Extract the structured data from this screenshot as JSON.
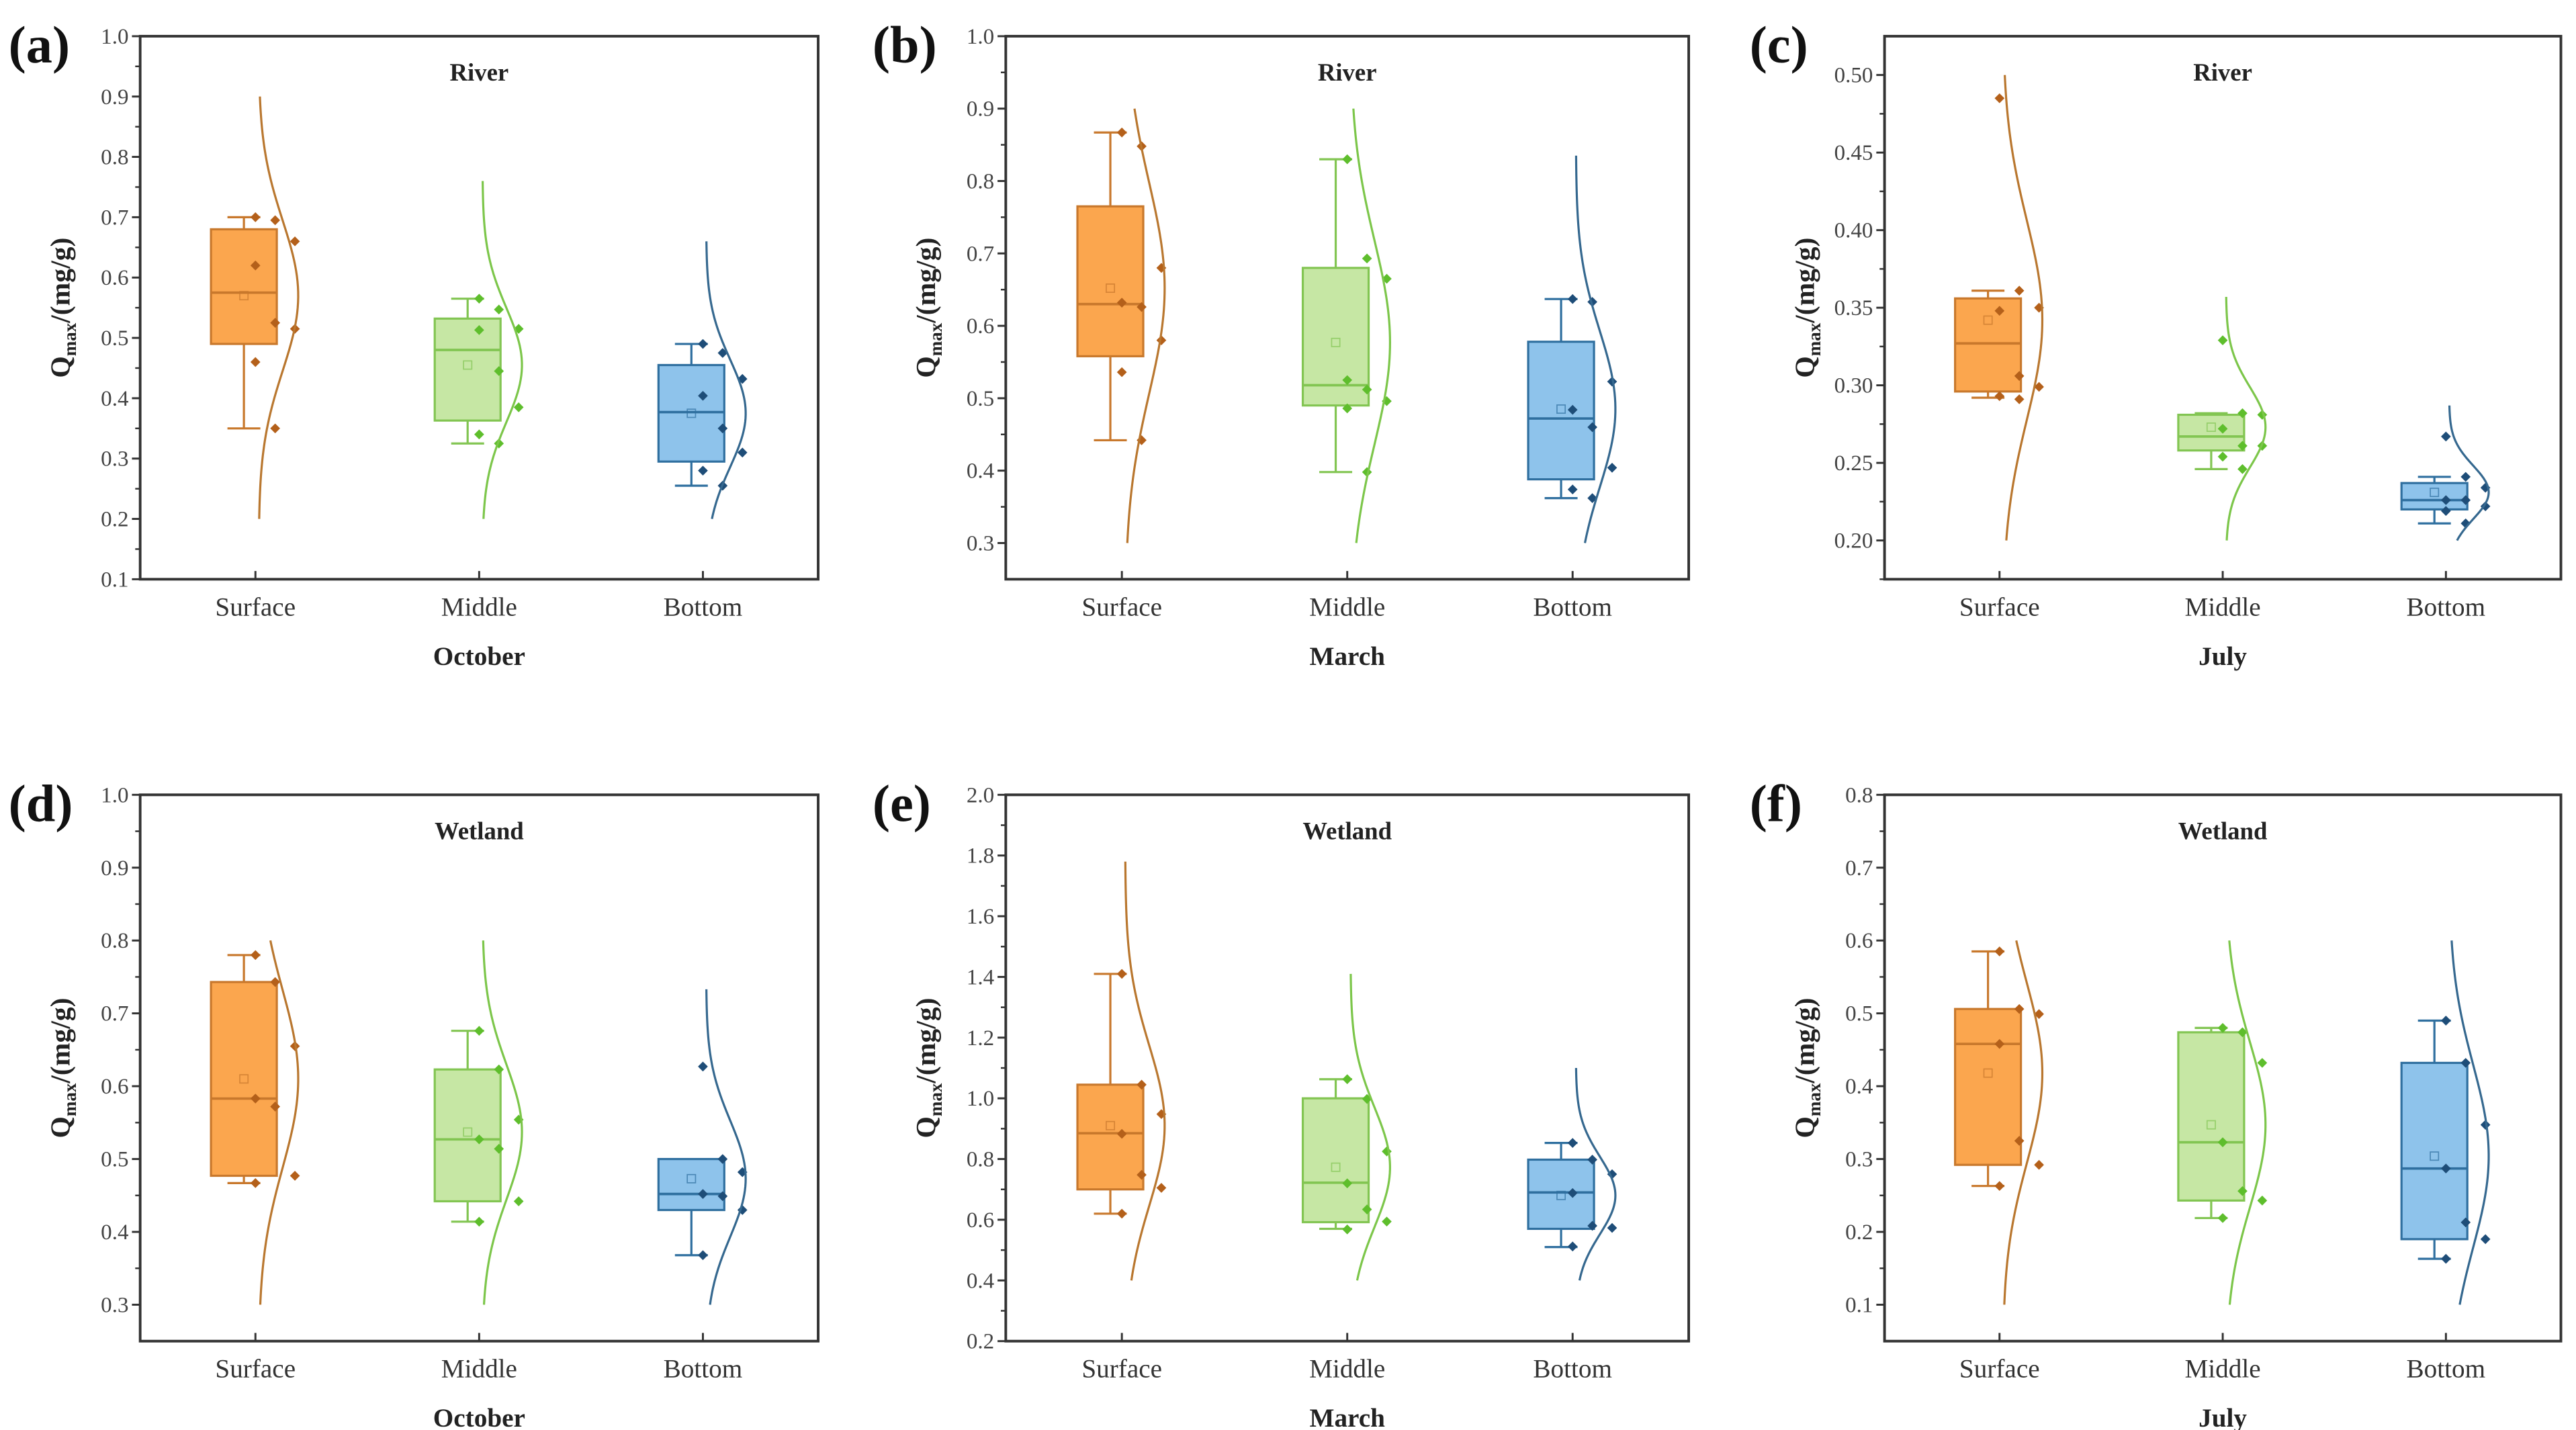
{
  "colors": {
    "Surface": {
      "fill": "#FBA64E",
      "stroke": "#C8782C",
      "point": "#B4601A",
      "curve": "#B9772F"
    },
    "Middle": {
      "fill": "#C6E7A4",
      "stroke": "#82C552",
      "point": "#5EBE2C",
      "curve": "#7CC64A"
    },
    "Bottom": {
      "fill": "#8EC3EB",
      "stroke": "#2F6F9F",
      "point": "#1E4D78",
      "curve": "#35688F"
    }
  },
  "chart_data": [
    {
      "type": "box",
      "panel": "(a)",
      "title": "River",
      "xlabel": "October",
      "ylabel": {
        "main": "Q",
        "sub": "max",
        "rest": "/(mg/g)"
      },
      "ylim": [
        0.1,
        1.0
      ],
      "yticks": [
        0.1,
        0.2,
        0.3,
        0.4,
        0.5,
        0.6,
        0.7,
        0.8,
        0.9,
        1.0
      ],
      "decimals": 1,
      "categories": [
        "Surface",
        "Middle",
        "Bottom"
      ],
      "groups": [
        {
          "min": 0.35,
          "q1": 0.49,
          "median": 0.575,
          "q3": 0.68,
          "max": 0.7,
          "mean": 0.57,
          "curve": [
            0.2,
            0.9
          ],
          "points": [
            0.7,
            0.695,
            0.66,
            0.62,
            0.525,
            0.515,
            0.46,
            0.35
          ]
        },
        {
          "min": 0.325,
          "q1": 0.363,
          "median": 0.48,
          "q3": 0.532,
          "max": 0.565,
          "mean": 0.455,
          "curve": [
            0.2,
            0.76
          ],
          "points": [
            0.565,
            0.547,
            0.515,
            0.513,
            0.445,
            0.385,
            0.34,
            0.325
          ]
        },
        {
          "min": 0.255,
          "q1": 0.295,
          "median": 0.377,
          "q3": 0.455,
          "max": 0.49,
          "mean": 0.375,
          "curve": [
            0.2,
            0.66
          ],
          "points": [
            0.49,
            0.475,
            0.432,
            0.404,
            0.35,
            0.31,
            0.28,
            0.255
          ]
        }
      ]
    },
    {
      "type": "box",
      "panel": "(b)",
      "title": "River",
      "xlabel": "March",
      "ylabel": {
        "main": "Q",
        "sub": "max",
        "rest": "/(mg/g)"
      },
      "ylim": [
        0.25,
        1.0
      ],
      "yticks": [
        0.3,
        0.4,
        0.5,
        0.6,
        0.7,
        0.8,
        0.9,
        1.0
      ],
      "decimals": 1,
      "categories": [
        "Surface",
        "Middle",
        "Bottom"
      ],
      "groups": [
        {
          "min": 0.442,
          "q1": 0.558,
          "median": 0.63,
          "q3": 0.765,
          "max": 0.867,
          "mean": 0.652,
          "curve": [
            0.3,
            0.9
          ],
          "points": [
            0.867,
            0.848,
            0.68,
            0.632,
            0.626,
            0.58,
            0.536,
            0.442
          ]
        },
        {
          "min": 0.398,
          "q1": 0.49,
          "median": 0.518,
          "q3": 0.68,
          "max": 0.83,
          "mean": 0.577,
          "curve": [
            0.3,
            0.9
          ],
          "points": [
            0.83,
            0.693,
            0.665,
            0.525,
            0.512,
            0.496,
            0.486,
            0.398
          ]
        },
        {
          "min": 0.362,
          "q1": 0.388,
          "median": 0.472,
          "q3": 0.578,
          "max": 0.637,
          "mean": 0.485,
          "curve": [
            0.3,
            0.835
          ],
          "points": [
            0.637,
            0.633,
            0.523,
            0.484,
            0.46,
            0.404,
            0.374,
            0.362
          ]
        }
      ]
    },
    {
      "type": "box",
      "panel": "(c)",
      "title": "River",
      "xlabel": "July",
      "ylabel": {
        "main": "Q",
        "sub": "max",
        "rest": "/(mg/g)"
      },
      "ylim": [
        0.175,
        0.525
      ],
      "yticks": [
        0.2,
        0.25,
        0.3,
        0.35,
        0.4,
        0.45,
        0.5
      ],
      "decimals": 2,
      "categories": [
        "Surface",
        "Middle",
        "Bottom"
      ],
      "groups": [
        {
          "min": 0.292,
          "q1": 0.296,
          "median": 0.327,
          "q3": 0.356,
          "max": 0.361,
          "mean": 0.342,
          "curve": [
            0.2,
            0.5
          ],
          "points": [
            0.485,
            0.361,
            0.35,
            0.348,
            0.306,
            0.299,
            0.293,
            0.291
          ]
        },
        {
          "min": 0.246,
          "q1": 0.258,
          "median": 0.267,
          "q3": 0.281,
          "max": 0.282,
          "mean": 0.273,
          "curve": [
            0.2,
            0.357
          ],
          "points": [
            0.329,
            0.282,
            0.281,
            0.272,
            0.261,
            0.261,
            0.254,
            0.246
          ]
        },
        {
          "min": 0.211,
          "q1": 0.22,
          "median": 0.226,
          "q3": 0.237,
          "max": 0.241,
          "mean": 0.231,
          "curve": [
            0.2,
            0.287
          ],
          "points": [
            0.267,
            0.241,
            0.234,
            0.226,
            0.226,
            0.222,
            0.219,
            0.211
          ]
        }
      ]
    },
    {
      "type": "box",
      "panel": "(d)",
      "title": "Wetland",
      "xlabel": "October",
      "ylabel": {
        "main": "Q",
        "sub": "max",
        "rest": "/(mg/g)"
      },
      "ylim": [
        0.25,
        1.0
      ],
      "yticks": [
        0.3,
        0.4,
        0.5,
        0.6,
        0.7,
        0.8,
        0.9,
        1.0
      ],
      "decimals": 1,
      "categories": [
        "Surface",
        "Middle",
        "Bottom"
      ],
      "groups": [
        {
          "min": 0.467,
          "q1": 0.477,
          "median": 0.583,
          "q3": 0.743,
          "max": 0.78,
          "mean": 0.61,
          "curve": [
            0.3,
            0.8
          ],
          "points": [
            0.78,
            0.743,
            0.655,
            0.583,
            0.572,
            0.477,
            0.467
          ]
        },
        {
          "min": 0.414,
          "q1": 0.442,
          "median": 0.527,
          "q3": 0.623,
          "max": 0.676,
          "mean": 0.537,
          "curve": [
            0.3,
            0.8
          ],
          "points": [
            0.676,
            0.623,
            0.554,
            0.527,
            0.514,
            0.442,
            0.414
          ]
        },
        {
          "min": 0.368,
          "q1": 0.43,
          "median": 0.452,
          "q3": 0.5,
          "max": 0.5,
          "mean": 0.473,
          "curve": [
            0.3,
            0.733
          ],
          "points": [
            0.627,
            0.5,
            0.482,
            0.452,
            0.449,
            0.43,
            0.368
          ]
        }
      ]
    },
    {
      "type": "box",
      "panel": "(e)",
      "title": "Wetland",
      "xlabel": "March",
      "ylabel": {
        "main": "Q",
        "sub": "max",
        "rest": "/(mg/g)"
      },
      "ylim": [
        0.2,
        2.0
      ],
      "yticks": [
        0.2,
        0.4,
        0.6,
        0.8,
        1.0,
        1.2,
        1.4,
        1.6,
        1.8,
        2.0
      ],
      "decimals": 1,
      "categories": [
        "Surface",
        "Middle",
        "Bottom"
      ],
      "groups": [
        {
          "min": 0.62,
          "q1": 0.7,
          "median": 0.885,
          "q3": 1.045,
          "max": 1.41,
          "mean": 0.91,
          "curve": [
            0.4,
            1.78
          ],
          "points": [
            1.41,
            1.045,
            0.948,
            0.883,
            0.748,
            0.705,
            0.62
          ]
        },
        {
          "min": 0.57,
          "q1": 0.592,
          "median": 0.722,
          "q3": 1.0,
          "max": 1.063,
          "mean": 0.773,
          "curve": [
            0.4,
            1.41
          ],
          "points": [
            1.063,
            0.998,
            0.825,
            0.72,
            0.634,
            0.594,
            0.568
          ]
        },
        {
          "min": 0.51,
          "q1": 0.57,
          "median": 0.69,
          "q3": 0.798,
          "max": 0.853,
          "mean": 0.68,
          "curve": [
            0.4,
            1.1
          ],
          "points": [
            0.853,
            0.798,
            0.75,
            0.688,
            0.58,
            0.573,
            0.512
          ]
        }
      ]
    },
    {
      "type": "box",
      "panel": "(f)",
      "title": "Wetland",
      "xlabel": "July",
      "ylabel": {
        "main": "Q",
        "sub": "max",
        "rest": "/(mg/g)"
      },
      "ylim": [
        0.05,
        0.8
      ],
      "yticks": [
        0.1,
        0.2,
        0.3,
        0.4,
        0.5,
        0.6,
        0.7,
        0.8
      ],
      "decimals": 1,
      "categories": [
        "Surface",
        "Middle",
        "Bottom"
      ],
      "groups": [
        {
          "min": 0.263,
          "q1": 0.292,
          "median": 0.458,
          "q3": 0.506,
          "max": 0.585,
          "mean": 0.418,
          "curve": [
            0.1,
            0.6
          ],
          "points": [
            0.585,
            0.506,
            0.499,
            0.458,
            0.325,
            0.292,
            0.263
          ]
        },
        {
          "min": 0.219,
          "q1": 0.243,
          "median": 0.323,
          "q3": 0.474,
          "max": 0.48,
          "mean": 0.347,
          "curve": [
            0.1,
            0.6
          ],
          "points": [
            0.48,
            0.474,
            0.432,
            0.323,
            0.256,
            0.243,
            0.219
          ]
        },
        {
          "min": 0.163,
          "q1": 0.19,
          "median": 0.287,
          "q3": 0.432,
          "max": 0.49,
          "mean": 0.304,
          "curve": [
            0.1,
            0.6
          ],
          "points": [
            0.49,
            0.432,
            0.347,
            0.287,
            0.213,
            0.19,
            0.163
          ]
        }
      ]
    }
  ]
}
